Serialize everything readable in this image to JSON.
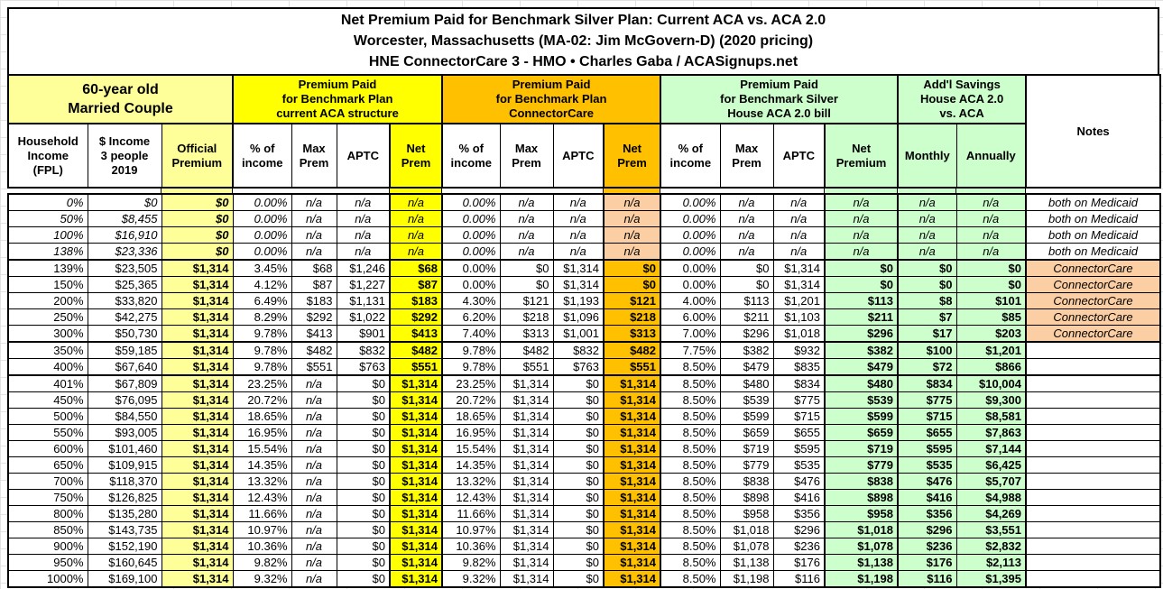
{
  "title": {
    "line1": "Net Premium Paid for Benchmark Silver Plan: Current ACA vs. ACA 2.0",
    "line2": "Worcester, Massachusetts (MA-02: Jim McGovern-D) (2020 pricing)",
    "line3": "HNE ConnectorCare 3 - HMO • Charles Gaba / ACASignups.net"
  },
  "groups": {
    "household": "60-year old\nMarried Couple",
    "aca": "Premium Paid\nfor Benchmark Plan\ncurrent ACA structure",
    "connectorcare": "Premium Paid\nfor Benchmark Plan\nConnectorCare",
    "house_aca20": "Premium Paid\nfor Benchmark Silver\nHouse ACA 2.0 bill",
    "savings": "Add'l Savings\nHouse ACA 2.0\nvs. ACA",
    "notes": "Notes"
  },
  "columns": [
    "Household\nIncome\n(FPL)",
    "$ Income\n3 people\n2019",
    "Official\nPremium",
    "% of\nincome",
    "Max\nPrem",
    "APTC",
    "Net\nPrem",
    "% of\nincome",
    "Max\nPrem",
    "APTC",
    "Net\nPrem",
    "% of\nincome",
    "Max\nPrem",
    "APTC",
    "Net\nPremium",
    "Monthly",
    "Annually"
  ],
  "colors": {
    "pale_yellow": "#FFFF99",
    "bright_yellow": "#FFFF00",
    "orange": "#FFC000",
    "peach": "#FBCFA3",
    "light_green": "#CCFFCC",
    "border": "#000000"
  },
  "rows": [
    {
      "fpl": "0%",
      "income": "$0",
      "official": "$0",
      "aca": [
        "0.00%",
        "n/a",
        "n/a",
        "n/a"
      ],
      "cc": [
        "0.00%",
        "n/a",
        "n/a",
        "n/a"
      ],
      "house": [
        "0.00%",
        "n/a",
        "n/a",
        "n/a"
      ],
      "monthly": "n/a",
      "annually": "n/a",
      "note": "both on Medicaid",
      "kind": "medicaid",
      "sep": false
    },
    {
      "fpl": "50%",
      "income": "$8,455",
      "official": "$0",
      "aca": [
        "0.00%",
        "n/a",
        "n/a",
        "n/a"
      ],
      "cc": [
        "0.00%",
        "n/a",
        "n/a",
        "n/a"
      ],
      "house": [
        "0.00%",
        "n/a",
        "n/a",
        "n/a"
      ],
      "monthly": "n/a",
      "annually": "n/a",
      "note": "both on Medicaid",
      "kind": "medicaid",
      "sep": false
    },
    {
      "fpl": "100%",
      "income": "$16,910",
      "official": "$0",
      "aca": [
        "0.00%",
        "n/a",
        "n/a",
        "n/a"
      ],
      "cc": [
        "0.00%",
        "n/a",
        "n/a",
        "n/a"
      ],
      "house": [
        "0.00%",
        "n/a",
        "n/a",
        "n/a"
      ],
      "monthly": "n/a",
      "annually": "n/a",
      "note": "both on Medicaid",
      "kind": "medicaid",
      "sep": false
    },
    {
      "fpl": "138%",
      "income": "$23,336",
      "official": "$0",
      "aca": [
        "0.00%",
        "n/a",
        "n/a",
        "n/a"
      ],
      "cc": [
        "0.00%",
        "n/a",
        "n/a",
        "n/a"
      ],
      "house": [
        "0.00%",
        "n/a",
        "n/a",
        "n/a"
      ],
      "monthly": "n/a",
      "annually": "n/a",
      "note": "both on Medicaid",
      "kind": "medicaid",
      "sep": true
    },
    {
      "fpl": "139%",
      "income": "$23,505",
      "official": "$1,314",
      "aca": [
        "3.45%",
        "$68",
        "$1,246",
        "$68"
      ],
      "cc": [
        "0.00%",
        "$0",
        "$1,314",
        "$0"
      ],
      "house": [
        "0.00%",
        "$0",
        "$1,314",
        "$0"
      ],
      "monthly": "$0",
      "annually": "$0",
      "note": "ConnectorCare",
      "kind": "cc",
      "sep": false
    },
    {
      "fpl": "150%",
      "income": "$25,365",
      "official": "$1,314",
      "aca": [
        "4.12%",
        "$87",
        "$1,227",
        "$87"
      ],
      "cc": [
        "0.00%",
        "$0",
        "$1,314",
        "$0"
      ],
      "house": [
        "0.00%",
        "$0",
        "$1,314",
        "$0"
      ],
      "monthly": "$0",
      "annually": "$0",
      "note": "ConnectorCare",
      "kind": "cc",
      "sep": false
    },
    {
      "fpl": "200%",
      "income": "$33,820",
      "official": "$1,314",
      "aca": [
        "6.49%",
        "$183",
        "$1,131",
        "$183"
      ],
      "cc": [
        "4.30%",
        "$121",
        "$1,193",
        "$121"
      ],
      "house": [
        "4.00%",
        "$113",
        "$1,201",
        "$113"
      ],
      "monthly": "$8",
      "annually": "$101",
      "note": "ConnectorCare",
      "kind": "cc",
      "sep": false
    },
    {
      "fpl": "250%",
      "income": "$42,275",
      "official": "$1,314",
      "aca": [
        "8.29%",
        "$292",
        "$1,022",
        "$292"
      ],
      "cc": [
        "6.20%",
        "$218",
        "$1,096",
        "$218"
      ],
      "house": [
        "6.00%",
        "$211",
        "$1,103",
        "$211"
      ],
      "monthly": "$7",
      "annually": "$85",
      "note": "ConnectorCare",
      "kind": "cc",
      "sep": false
    },
    {
      "fpl": "300%",
      "income": "$50,730",
      "official": "$1,314",
      "aca": [
        "9.78%",
        "$413",
        "$901",
        "$413"
      ],
      "cc": [
        "7.40%",
        "$313",
        "$1,001",
        "$313"
      ],
      "house": [
        "7.00%",
        "$296",
        "$1,018",
        "$296"
      ],
      "monthly": "$17",
      "annually": "$203",
      "note": "ConnectorCare",
      "kind": "cc",
      "sep": true
    },
    {
      "fpl": "350%",
      "income": "$59,185",
      "official": "$1,314",
      "aca": [
        "9.78%",
        "$482",
        "$832",
        "$482"
      ],
      "cc": [
        "9.78%",
        "$482",
        "$832",
        "$482"
      ],
      "house": [
        "7.75%",
        "$382",
        "$932",
        "$382"
      ],
      "monthly": "$100",
      "annually": "$1,201",
      "note": "",
      "kind": "",
      "sep": false
    },
    {
      "fpl": "400%",
      "income": "$67,640",
      "official": "$1,314",
      "aca": [
        "9.78%",
        "$551",
        "$763",
        "$551"
      ],
      "cc": [
        "9.78%",
        "$551",
        "$763",
        "$551"
      ],
      "house": [
        "8.50%",
        "$479",
        "$835",
        "$479"
      ],
      "monthly": "$72",
      "annually": "$866",
      "note": "",
      "kind": "",
      "sep": true
    },
    {
      "fpl": "401%",
      "income": "$67,809",
      "official": "$1,314",
      "aca": [
        "23.25%",
        "n/a",
        "$0",
        "$1,314"
      ],
      "cc": [
        "23.25%",
        "$1,314",
        "$0",
        "$1,314"
      ],
      "house": [
        "8.50%",
        "$480",
        "$834",
        "$480"
      ],
      "monthly": "$834",
      "annually": "$10,004",
      "note": "",
      "kind": "",
      "sep": false
    },
    {
      "fpl": "450%",
      "income": "$76,095",
      "official": "$1,314",
      "aca": [
        "20.72%",
        "n/a",
        "$0",
        "$1,314"
      ],
      "cc": [
        "20.72%",
        "$1,314",
        "$0",
        "$1,314"
      ],
      "house": [
        "8.50%",
        "$539",
        "$775",
        "$539"
      ],
      "monthly": "$775",
      "annually": "$9,300",
      "note": "",
      "kind": "",
      "sep": false
    },
    {
      "fpl": "500%",
      "income": "$84,550",
      "official": "$1,314",
      "aca": [
        "18.65%",
        "n/a",
        "$0",
        "$1,314"
      ],
      "cc": [
        "18.65%",
        "$1,314",
        "$0",
        "$1,314"
      ],
      "house": [
        "8.50%",
        "$599",
        "$715",
        "$599"
      ],
      "monthly": "$715",
      "annually": "$8,581",
      "note": "",
      "kind": "",
      "sep": false
    },
    {
      "fpl": "550%",
      "income": "$93,005",
      "official": "$1,314",
      "aca": [
        "16.95%",
        "n/a",
        "$0",
        "$1,314"
      ],
      "cc": [
        "16.95%",
        "$1,314",
        "$0",
        "$1,314"
      ],
      "house": [
        "8.50%",
        "$659",
        "$655",
        "$659"
      ],
      "monthly": "$655",
      "annually": "$7,863",
      "note": "",
      "kind": "",
      "sep": false
    },
    {
      "fpl": "600%",
      "income": "$101,460",
      "official": "$1,314",
      "aca": [
        "15.54%",
        "n/a",
        "$0",
        "$1,314"
      ],
      "cc": [
        "15.54%",
        "$1,314",
        "$0",
        "$1,314"
      ],
      "house": [
        "8.50%",
        "$719",
        "$595",
        "$719"
      ],
      "monthly": "$595",
      "annually": "$7,144",
      "note": "",
      "kind": "",
      "sep": false
    },
    {
      "fpl": "650%",
      "income": "$109,915",
      "official": "$1,314",
      "aca": [
        "14.35%",
        "n/a",
        "$0",
        "$1,314"
      ],
      "cc": [
        "14.35%",
        "$1,314",
        "$0",
        "$1,314"
      ],
      "house": [
        "8.50%",
        "$779",
        "$535",
        "$779"
      ],
      "monthly": "$535",
      "annually": "$6,425",
      "note": "",
      "kind": "",
      "sep": false
    },
    {
      "fpl": "700%",
      "income": "$118,370",
      "official": "$1,314",
      "aca": [
        "13.32%",
        "n/a",
        "$0",
        "$1,314"
      ],
      "cc": [
        "13.32%",
        "$1,314",
        "$0",
        "$1,314"
      ],
      "house": [
        "8.50%",
        "$838",
        "$476",
        "$838"
      ],
      "monthly": "$476",
      "annually": "$5,707",
      "note": "",
      "kind": "",
      "sep": false
    },
    {
      "fpl": "750%",
      "income": "$126,825",
      "official": "$1,314",
      "aca": [
        "12.43%",
        "n/a",
        "$0",
        "$1,314"
      ],
      "cc": [
        "12.43%",
        "$1,314",
        "$0",
        "$1,314"
      ],
      "house": [
        "8.50%",
        "$898",
        "$416",
        "$898"
      ],
      "monthly": "$416",
      "annually": "$4,988",
      "note": "",
      "kind": "",
      "sep": false
    },
    {
      "fpl": "800%",
      "income": "$135,280",
      "official": "$1,314",
      "aca": [
        "11.66%",
        "n/a",
        "$0",
        "$1,314"
      ],
      "cc": [
        "11.66%",
        "$1,314",
        "$0",
        "$1,314"
      ],
      "house": [
        "8.50%",
        "$958",
        "$356",
        "$958"
      ],
      "monthly": "$356",
      "annually": "$4,269",
      "note": "",
      "kind": "",
      "sep": false
    },
    {
      "fpl": "850%",
      "income": "$143,735",
      "official": "$1,314",
      "aca": [
        "10.97%",
        "n/a",
        "$0",
        "$1,314"
      ],
      "cc": [
        "10.97%",
        "$1,314",
        "$0",
        "$1,314"
      ],
      "house": [
        "8.50%",
        "$1,018",
        "$296",
        "$1,018"
      ],
      "monthly": "$296",
      "annually": "$3,551",
      "note": "",
      "kind": "",
      "sep": false
    },
    {
      "fpl": "900%",
      "income": "$152,190",
      "official": "$1,314",
      "aca": [
        "10.36%",
        "n/a",
        "$0",
        "$1,314"
      ],
      "cc": [
        "10.36%",
        "$1,314",
        "$0",
        "$1,314"
      ],
      "house": [
        "8.50%",
        "$1,078",
        "$236",
        "$1,078"
      ],
      "monthly": "$236",
      "annually": "$2,832",
      "note": "",
      "kind": "",
      "sep": false
    },
    {
      "fpl": "950%",
      "income": "$160,645",
      "official": "$1,314",
      "aca": [
        "9.82%",
        "n/a",
        "$0",
        "$1,314"
      ],
      "cc": [
        "9.82%",
        "$1,314",
        "$0",
        "$1,314"
      ],
      "house": [
        "8.50%",
        "$1,138",
        "$176",
        "$1,138"
      ],
      "monthly": "$176",
      "annually": "$2,113",
      "note": "",
      "kind": "",
      "sep": false
    },
    {
      "fpl": "1000%",
      "income": "$169,100",
      "official": "$1,314",
      "aca": [
        "9.32%",
        "n/a",
        "$0",
        "$1,314"
      ],
      "cc": [
        "9.32%",
        "$1,314",
        "$0",
        "$1,314"
      ],
      "house": [
        "8.50%",
        "$1,198",
        "$116",
        "$1,198"
      ],
      "monthly": "$116",
      "annually": "$1,395",
      "note": "",
      "kind": "",
      "sep": false
    }
  ]
}
